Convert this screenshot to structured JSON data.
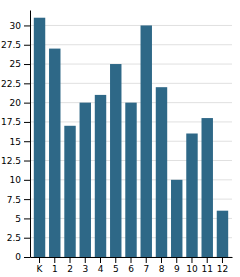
{
  "chart_data": {
    "type": "bar",
    "categories": [
      "K",
      "1",
      "2",
      "3",
      "4",
      "5",
      "6",
      "7",
      "8",
      "9",
      "10",
      "11",
      "12"
    ],
    "values": [
      31,
      27,
      17,
      20,
      21,
      25,
      20,
      30,
      22,
      10,
      16,
      18,
      6
    ],
    "color": "#2e6887",
    "ylim": [
      0,
      32
    ],
    "yticks": [
      0,
      2.5,
      5,
      7.5,
      10,
      12.5,
      15,
      17.5,
      20,
      22.5,
      25,
      27.5,
      30
    ],
    "grid": true
  }
}
